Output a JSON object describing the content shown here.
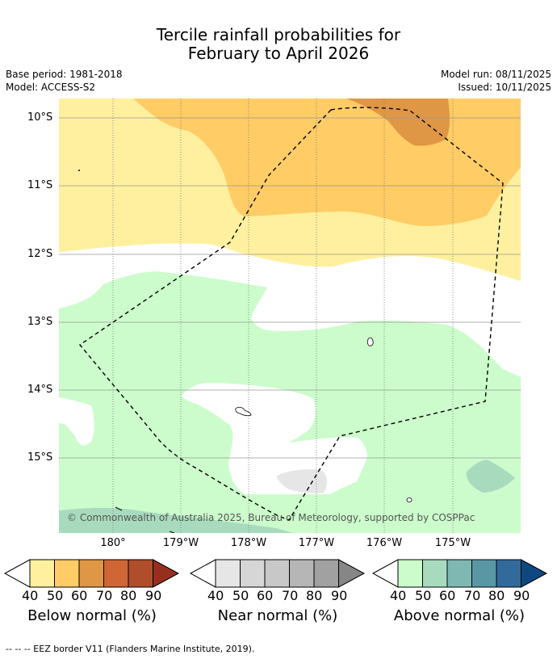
{
  "title_line1": "Tercile rainfall probabilities for",
  "title_line2": "February to April 2026",
  "meta": {
    "base_period": "Base period: 1981-2018",
    "model": "Model: ACCESS-S2",
    "model_run": "Model run: 08/11/2025",
    "issued": "Issued: 10/11/2025"
  },
  "map": {
    "lat_labels": [
      "10°S",
      "11°S",
      "12°S",
      "13°S",
      "14°S",
      "15°S"
    ],
    "lon_labels": [
      "180°",
      "179°W",
      "178°W",
      "177°W",
      "176°W",
      "175°W"
    ],
    "credit": "© Commonwealth of Australia 2025, Bureau of Meteorology, supported by COSPPac"
  },
  "legend": {
    "ticks": [
      "40",
      "50",
      "60",
      "70",
      "80",
      "90"
    ],
    "below": {
      "title": "Below normal (%)",
      "colors": [
        "#fff0a0",
        "#ffcc66",
        "#e09745",
        "#cf6634",
        "#b04e2c",
        "#982e1e"
      ]
    },
    "near": {
      "title": "Near normal (%)",
      "colors": [
        "#e6e6e6",
        "#d6d6d6",
        "#c8c8c8",
        "#b6b6b6",
        "#a1a1a1",
        "#868686"
      ]
    },
    "above": {
      "title": "Above normal (%)",
      "colors": [
        "#ccfccc",
        "#a8dbbe",
        "#7fb8b2",
        "#5a97a5",
        "#336a9c",
        "#0e4882"
      ]
    }
  },
  "footnote": "--  --  -- EEZ border V11 (Flanders Marine Institute, 2019)."
}
